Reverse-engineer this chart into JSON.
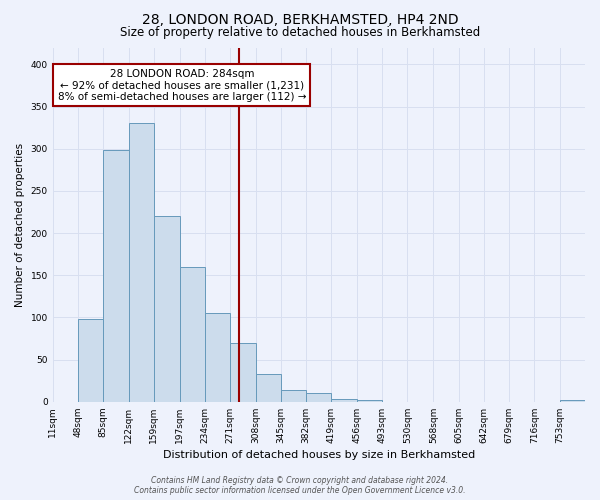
{
  "title": "28, LONDON ROAD, BERKHAMSTED, HP4 2ND",
  "subtitle": "Size of property relative to detached houses in Berkhamsted",
  "xlabel": "Distribution of detached houses by size in Berkhamsted",
  "ylabel": "Number of detached properties",
  "bin_labels": [
    "11sqm",
    "48sqm",
    "85sqm",
    "122sqm",
    "159sqm",
    "197sqm",
    "234sqm",
    "271sqm",
    "308sqm",
    "345sqm",
    "382sqm",
    "419sqm",
    "456sqm",
    "493sqm",
    "530sqm",
    "568sqm",
    "605sqm",
    "642sqm",
    "679sqm",
    "716sqm",
    "753sqm"
  ],
  "bin_edges": [
    11,
    48,
    85,
    122,
    159,
    197,
    234,
    271,
    308,
    345,
    382,
    419,
    456,
    493,
    530,
    568,
    605,
    642,
    679,
    716,
    753,
    790
  ],
  "bar_heights": [
    0,
    98,
    298,
    330,
    220,
    160,
    105,
    70,
    33,
    14,
    10,
    3,
    2,
    0,
    0,
    0,
    0,
    0,
    0,
    0,
    2
  ],
  "bar_color": "#ccdcec",
  "bar_edge_color": "#6699bb",
  "property_line_x": 284,
  "property_line_color": "#990000",
  "annotation_text": "28 LONDON ROAD: 284sqm\n← 92% of detached houses are smaller (1,231)\n8% of semi-detached houses are larger (112) →",
  "annotation_box_color": "#ffffff",
  "annotation_box_edge": "#990000",
  "ylim": [
    0,
    420
  ],
  "yticks": [
    0,
    50,
    100,
    150,
    200,
    250,
    300,
    350,
    400
  ],
  "grid_color": "#d8dff0",
  "background_color": "#eef2fc",
  "footer_line1": "Contains HM Land Registry data © Crown copyright and database right 2024.",
  "footer_line2": "Contains public sector information licensed under the Open Government Licence v3.0.",
  "title_fontsize": 10,
  "subtitle_fontsize": 8.5,
  "xlabel_fontsize": 8,
  "ylabel_fontsize": 7.5,
  "tick_fontsize": 6.5,
  "annotation_fontsize": 7.5,
  "footer_fontsize": 5.5
}
